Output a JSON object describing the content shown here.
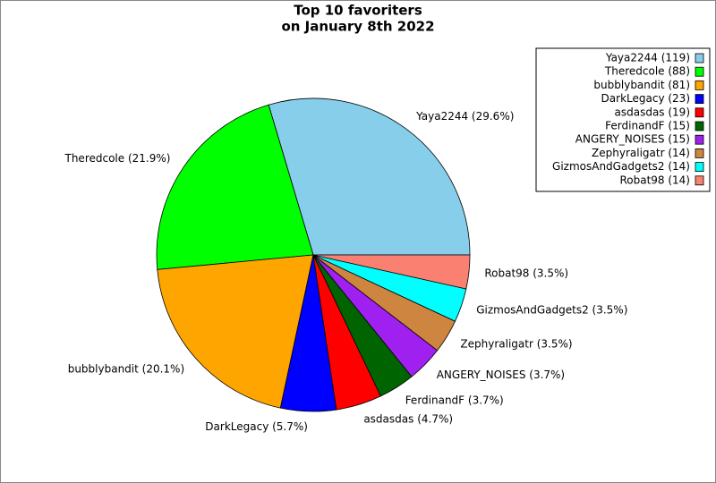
{
  "chart_data": {
    "type": "pie",
    "title": [
      "Top 10 favoriters",
      "on January 8th 2022"
    ],
    "categories": [
      "Yaya2244",
      "Theredcole",
      "bubblybandit",
      "DarkLegacy",
      "asdasdas",
      "FerdinandF",
      "ANGERY_NOISES",
      "Zephyraligatr",
      "GizmosAndGadgets2",
      "Robat98"
    ],
    "values": [
      119,
      88,
      81,
      23,
      19,
      15,
      15,
      14,
      14,
      14
    ],
    "value_labels": [
      "Yaya2244 (29.6%)",
      "Theredcole (21.9%)",
      "bubblybandit (20.1%)",
      "DarkLegacy (5.7%)",
      "asdasdas (4.7%)",
      "FerdinandF (3.7%)",
      "ANGERY_NOISES (3.7%)",
      "Zephyraligatr (3.5%)",
      "GizmosAndGadgets2 (3.5%)",
      "Robat98 (3.5%)"
    ],
    "legend_labels": [
      "Yaya2244 (119)",
      "Theredcole (88)",
      "bubblybandit (81)",
      "DarkLegacy (23)",
      "asdasdas (19)",
      "FerdinandF (15)",
      "ANGERY_NOISES (15)",
      "Zephyraligatr (14)",
      "GizmosAndGadgets2 (14)",
      "Robat98 (14)"
    ],
    "colors": [
      "#87ceeb",
      "#00ff00",
      "#ffa500",
      "#0000ff",
      "#ff0000",
      "#006400",
      "#a020f0",
      "#cd853f",
      "#00ffff",
      "#fa8072"
    ],
    "legend": "upper right"
  }
}
